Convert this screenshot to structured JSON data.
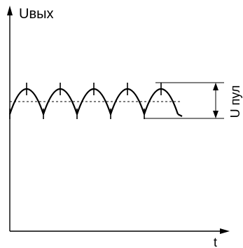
{
  "diagram": {
    "y_axis_label": "Uвых",
    "x_axis_label": "t",
    "ripple_label": "U пул",
    "colors": {
      "line": "#000000",
      "background": "#ffffff"
    }
  }
}
